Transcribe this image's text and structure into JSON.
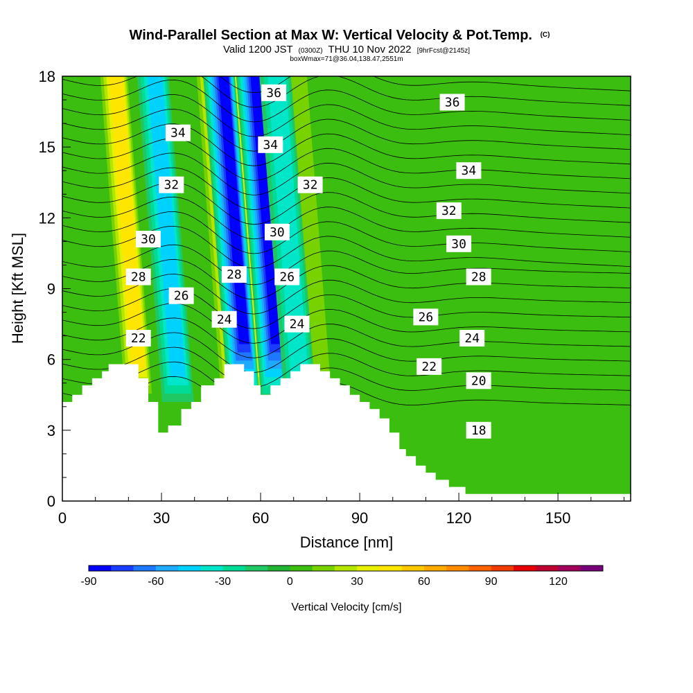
{
  "chart_data": {
    "type": "heatmap",
    "title": "Wind-Parallel Section at Max W: Vertical Velocity & Pot.Temp.",
    "title_mark": "(C)",
    "subtitle_valid": "Valid 1200 JST",
    "subtitle_utc": "(0300Z)",
    "subtitle_date": "THU 10 Nov 2022",
    "subtitle_fcst": "[9hrFcst@2145z]",
    "subtitle_box": "boxWmax=71@36.04,138.47,2551m",
    "xlabel": "Distance [nm]",
    "ylabel": "Height [Kft MSL]",
    "xlim": [
      0,
      172
    ],
    "ylim": [
      0,
      18
    ],
    "x_ticks": [
      0,
      30,
      60,
      90,
      120,
      150
    ],
    "y_ticks": [
      0,
      3,
      6,
      9,
      12,
      15,
      18
    ],
    "colorbar": {
      "label": "Vertical Velocity [cm/s]",
      "min": -90,
      "max": 130,
      "step": 10,
      "ticks": [
        -90,
        -60,
        -30,
        0,
        30,
        60,
        90,
        120
      ],
      "colors": [
        "#0000ff",
        "#1a3cff",
        "#1e78ff",
        "#1eaaff",
        "#00d2ff",
        "#00e6c8",
        "#00dc96",
        "#20c864",
        "#20b432",
        "#3cbe10",
        "#78d200",
        "#b4e600",
        "#e6f000",
        "#ffe600",
        "#ffc800",
        "#ffaa00",
        "#ff8c00",
        "#ff6400",
        "#f03c00",
        "#e60000",
        "#be0032",
        "#a0005a",
        "#780078"
      ]
    },
    "updraft_columns": [
      {
        "x_nm": 23,
        "velocity_cms": 50
      },
      {
        "x_nm": 52,
        "velocity_cms": 40
      },
      {
        "x_nm": 62,
        "velocity_cms": 60
      },
      {
        "x_nm": 78,
        "velocity_cms": 25
      }
    ],
    "downdraft_columns": [
      {
        "x_nm": 35,
        "velocity_cms": -40
      },
      {
        "x_nm": 55,
        "velocity_cms": -80
      },
      {
        "x_nm": 65,
        "velocity_cms": -90
      },
      {
        "x_nm": 72,
        "velocity_cms": -30
      }
    ],
    "terrain_kft": [
      [
        0,
        4.2
      ],
      [
        3,
        4.2
      ],
      [
        3,
        4.5
      ],
      [
        6,
        4.5
      ],
      [
        6,
        4.9
      ],
      [
        9,
        4.9
      ],
      [
        9,
        5.2
      ],
      [
        12,
        5.2
      ],
      [
        12,
        5.5
      ],
      [
        14,
        5.5
      ],
      [
        14,
        5.8
      ],
      [
        23,
        5.8
      ],
      [
        23,
        5.2
      ],
      [
        26,
        5.2
      ],
      [
        26,
        4.2
      ],
      [
        29,
        4.2
      ],
      [
        29,
        2.9
      ],
      [
        32,
        2.9
      ],
      [
        32,
        3.2
      ],
      [
        36,
        3.2
      ],
      [
        36,
        3.9
      ],
      [
        39,
        3.9
      ],
      [
        39,
        4.2
      ],
      [
        42,
        4.2
      ],
      [
        42,
        4.9
      ],
      [
        46,
        4.9
      ],
      [
        46,
        5.2
      ],
      [
        49,
        5.2
      ],
      [
        49,
        5.8
      ],
      [
        55,
        5.8
      ],
      [
        55,
        5.5
      ],
      [
        58,
        5.5
      ],
      [
        58,
        4.9
      ],
      [
        60,
        4.9
      ],
      [
        60,
        4.5
      ],
      [
        63,
        4.5
      ],
      [
        63,
        4.9
      ],
      [
        66,
        4.9
      ],
      [
        66,
        5.2
      ],
      [
        69,
        5.2
      ],
      [
        69,
        5.5
      ],
      [
        72,
        5.5
      ],
      [
        72,
        5.8
      ],
      [
        78,
        5.8
      ],
      [
        78,
        5.5
      ],
      [
        81,
        5.5
      ],
      [
        81,
        5.2
      ],
      [
        84,
        5.2
      ],
      [
        84,
        4.9
      ],
      [
        87,
        4.9
      ],
      [
        87,
        4.5
      ],
      [
        90,
        4.5
      ],
      [
        90,
        4.2
      ],
      [
        93,
        4.2
      ],
      [
        93,
        3.9
      ],
      [
        96,
        3.9
      ],
      [
        96,
        3.5
      ],
      [
        99,
        3.5
      ],
      [
        99,
        2.9
      ],
      [
        102,
        2.9
      ],
      [
        102,
        2.2
      ],
      [
        104,
        2.2
      ],
      [
        104,
        1.9
      ],
      [
        107,
        1.9
      ],
      [
        107,
        1.5
      ],
      [
        110,
        1.5
      ],
      [
        110,
        1.2
      ],
      [
        113,
        1.2
      ],
      [
        113,
        0.9
      ],
      [
        117,
        0.9
      ],
      [
        117,
        0.6
      ],
      [
        122,
        0.6
      ],
      [
        122,
        0.3
      ],
      [
        172,
        0.3
      ]
    ],
    "theta_labels": [
      {
        "text": "36",
        "x": 64,
        "y": 17.3
      },
      {
        "text": "36",
        "x": 118,
        "y": 16.9
      },
      {
        "text": "34",
        "x": 35,
        "y": 15.6
      },
      {
        "text": "34",
        "x": 63,
        "y": 15.1
      },
      {
        "text": "34",
        "x": 123,
        "y": 14.0
      },
      {
        "text": "32",
        "x": 33,
        "y": 13.4
      },
      {
        "text": "32",
        "x": 75,
        "y": 13.4
      },
      {
        "text": "32",
        "x": 117,
        "y": 12.3
      },
      {
        "text": "30",
        "x": 26,
        "y": 11.1
      },
      {
        "text": "30",
        "x": 65,
        "y": 11.4
      },
      {
        "text": "30",
        "x": 120,
        "y": 10.9
      },
      {
        "text": "28",
        "x": 23,
        "y": 9.5
      },
      {
        "text": "28",
        "x": 52,
        "y": 9.6
      },
      {
        "text": "28",
        "x": 126,
        "y": 9.5
      },
      {
        "text": "26",
        "x": 36,
        "y": 8.7
      },
      {
        "text": "26",
        "x": 68,
        "y": 9.5
      },
      {
        "text": "26",
        "x": 110,
        "y": 7.8
      },
      {
        "text": "24",
        "x": 49,
        "y": 7.7
      },
      {
        "text": "24",
        "x": 71,
        "y": 7.5
      },
      {
        "text": "24",
        "x": 124,
        "y": 6.9
      },
      {
        "text": "22",
        "x": 23,
        "y": 6.9
      },
      {
        "text": "22",
        "x": 111,
        "y": 5.7
      },
      {
        "text": "20",
        "x": 126,
        "y": 5.1
      },
      {
        "text": "18",
        "x": 126,
        "y": 3.0
      }
    ]
  }
}
